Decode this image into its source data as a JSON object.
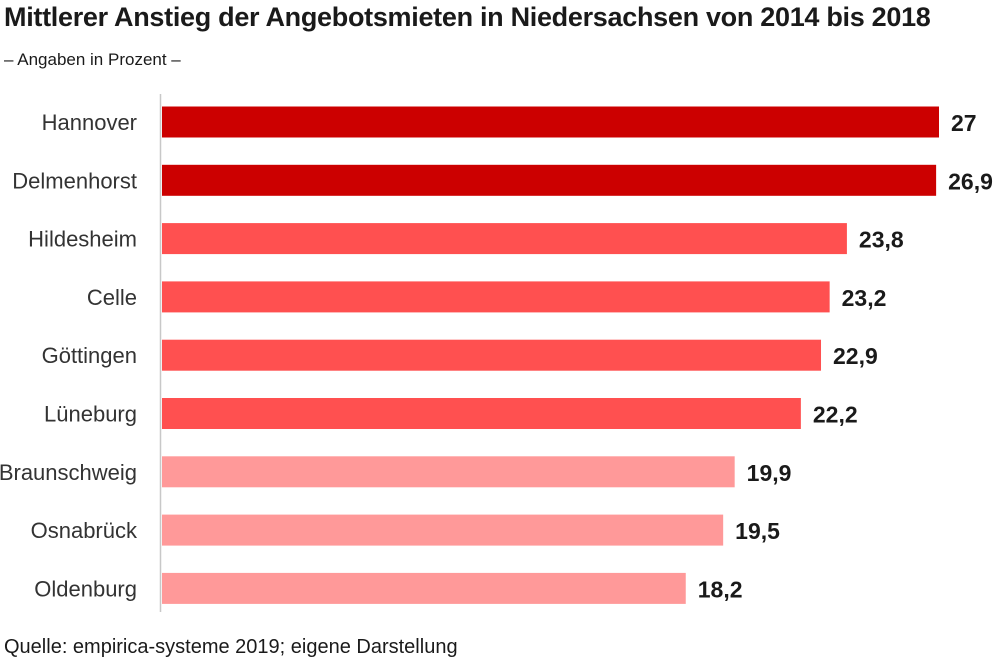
{
  "chart_data": {
    "type": "bar",
    "orientation": "horizontal",
    "title": "Mittlerer Anstieg der Angebotsmieten in Niedersachsen von 2014 bis 2018",
    "subtitle": "– Angaben in Prozent –",
    "categories": [
      "Hannover",
      "Delmenhorst",
      "Hildesheim",
      "Celle",
      "Göttingen",
      "Lüneburg",
      "Braunschweig",
      "Osnabrück",
      "Oldenburg"
    ],
    "values": [
      27,
      26.9,
      23.8,
      23.2,
      22.9,
      22.2,
      19.9,
      19.5,
      18.2
    ],
    "value_labels": [
      "27",
      "26,9",
      "23,8",
      "23,2",
      "22,9",
      "22,2",
      "19,9",
      "19,5",
      "18,2"
    ],
    "bar_colors": [
      "#cc0000",
      "#cc0000",
      "#ff5050",
      "#ff5050",
      "#ff5050",
      "#ff5050",
      "#ff9999",
      "#ff9999",
      "#ff9999"
    ],
    "xlim": [
      0,
      27
    ],
    "grid": false,
    "legend": "none"
  },
  "source": "Quelle: empirica-systeme 2019; eigene Darstellung"
}
